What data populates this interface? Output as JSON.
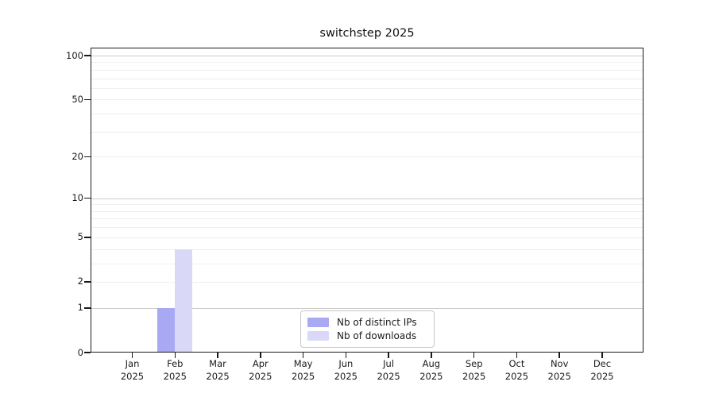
{
  "title": "switchstep 2025",
  "chart_data": {
    "type": "bar",
    "title": "switchstep 2025",
    "categories": [
      "Jan 2025",
      "Feb 2025",
      "Mar 2025",
      "Apr 2025",
      "May 2025",
      "Jun 2025",
      "Jul 2025",
      "Aug 2025",
      "Sep 2025",
      "Oct 2025",
      "Nov 2025",
      "Dec 2025"
    ],
    "series": [
      {
        "name": "Nb of distinct IPs",
        "color": "#a9a9f3",
        "values": [
          0,
          1,
          0,
          0,
          0,
          0,
          0,
          0,
          0,
          0,
          0,
          0
        ]
      },
      {
        "name": "Nb of downloads",
        "color": "#d9d9f7",
        "values": [
          0,
          4,
          0,
          0,
          0,
          0,
          0,
          0,
          0,
          0,
          0,
          0
        ]
      }
    ],
    "xlabel": "",
    "ylabel": "",
    "y_scale": "log1p",
    "ylim": [
      0,
      113
    ],
    "y_ticks": [
      0,
      1,
      2,
      5,
      10,
      20,
      50,
      100
    ],
    "y_major_gridlines": [
      1,
      10,
      100
    ],
    "y_minor_gridlines": [
      2,
      3,
      4,
      5,
      6,
      7,
      8,
      9,
      20,
      30,
      40,
      50,
      60,
      70,
      80,
      90
    ],
    "grid": "horizontal only",
    "legend": {
      "position": "lower center, inside plot",
      "entries": [
        "Nb of distinct IPs",
        "Nb of downloads"
      ]
    },
    "annotations": {
      "feb_2025_distinct_ips": 1,
      "feb_2025_downloads": 4
    }
  },
  "colors": {
    "background": "#ffffff",
    "spine": "#1a1a1a",
    "major_grid": "#cbcbcb",
    "minor_grid": "#efefef",
    "text": "#1a1a1a",
    "bar_distinct_ips": "#a9a9f3",
    "bar_downloads": "#d9d9f7"
  }
}
